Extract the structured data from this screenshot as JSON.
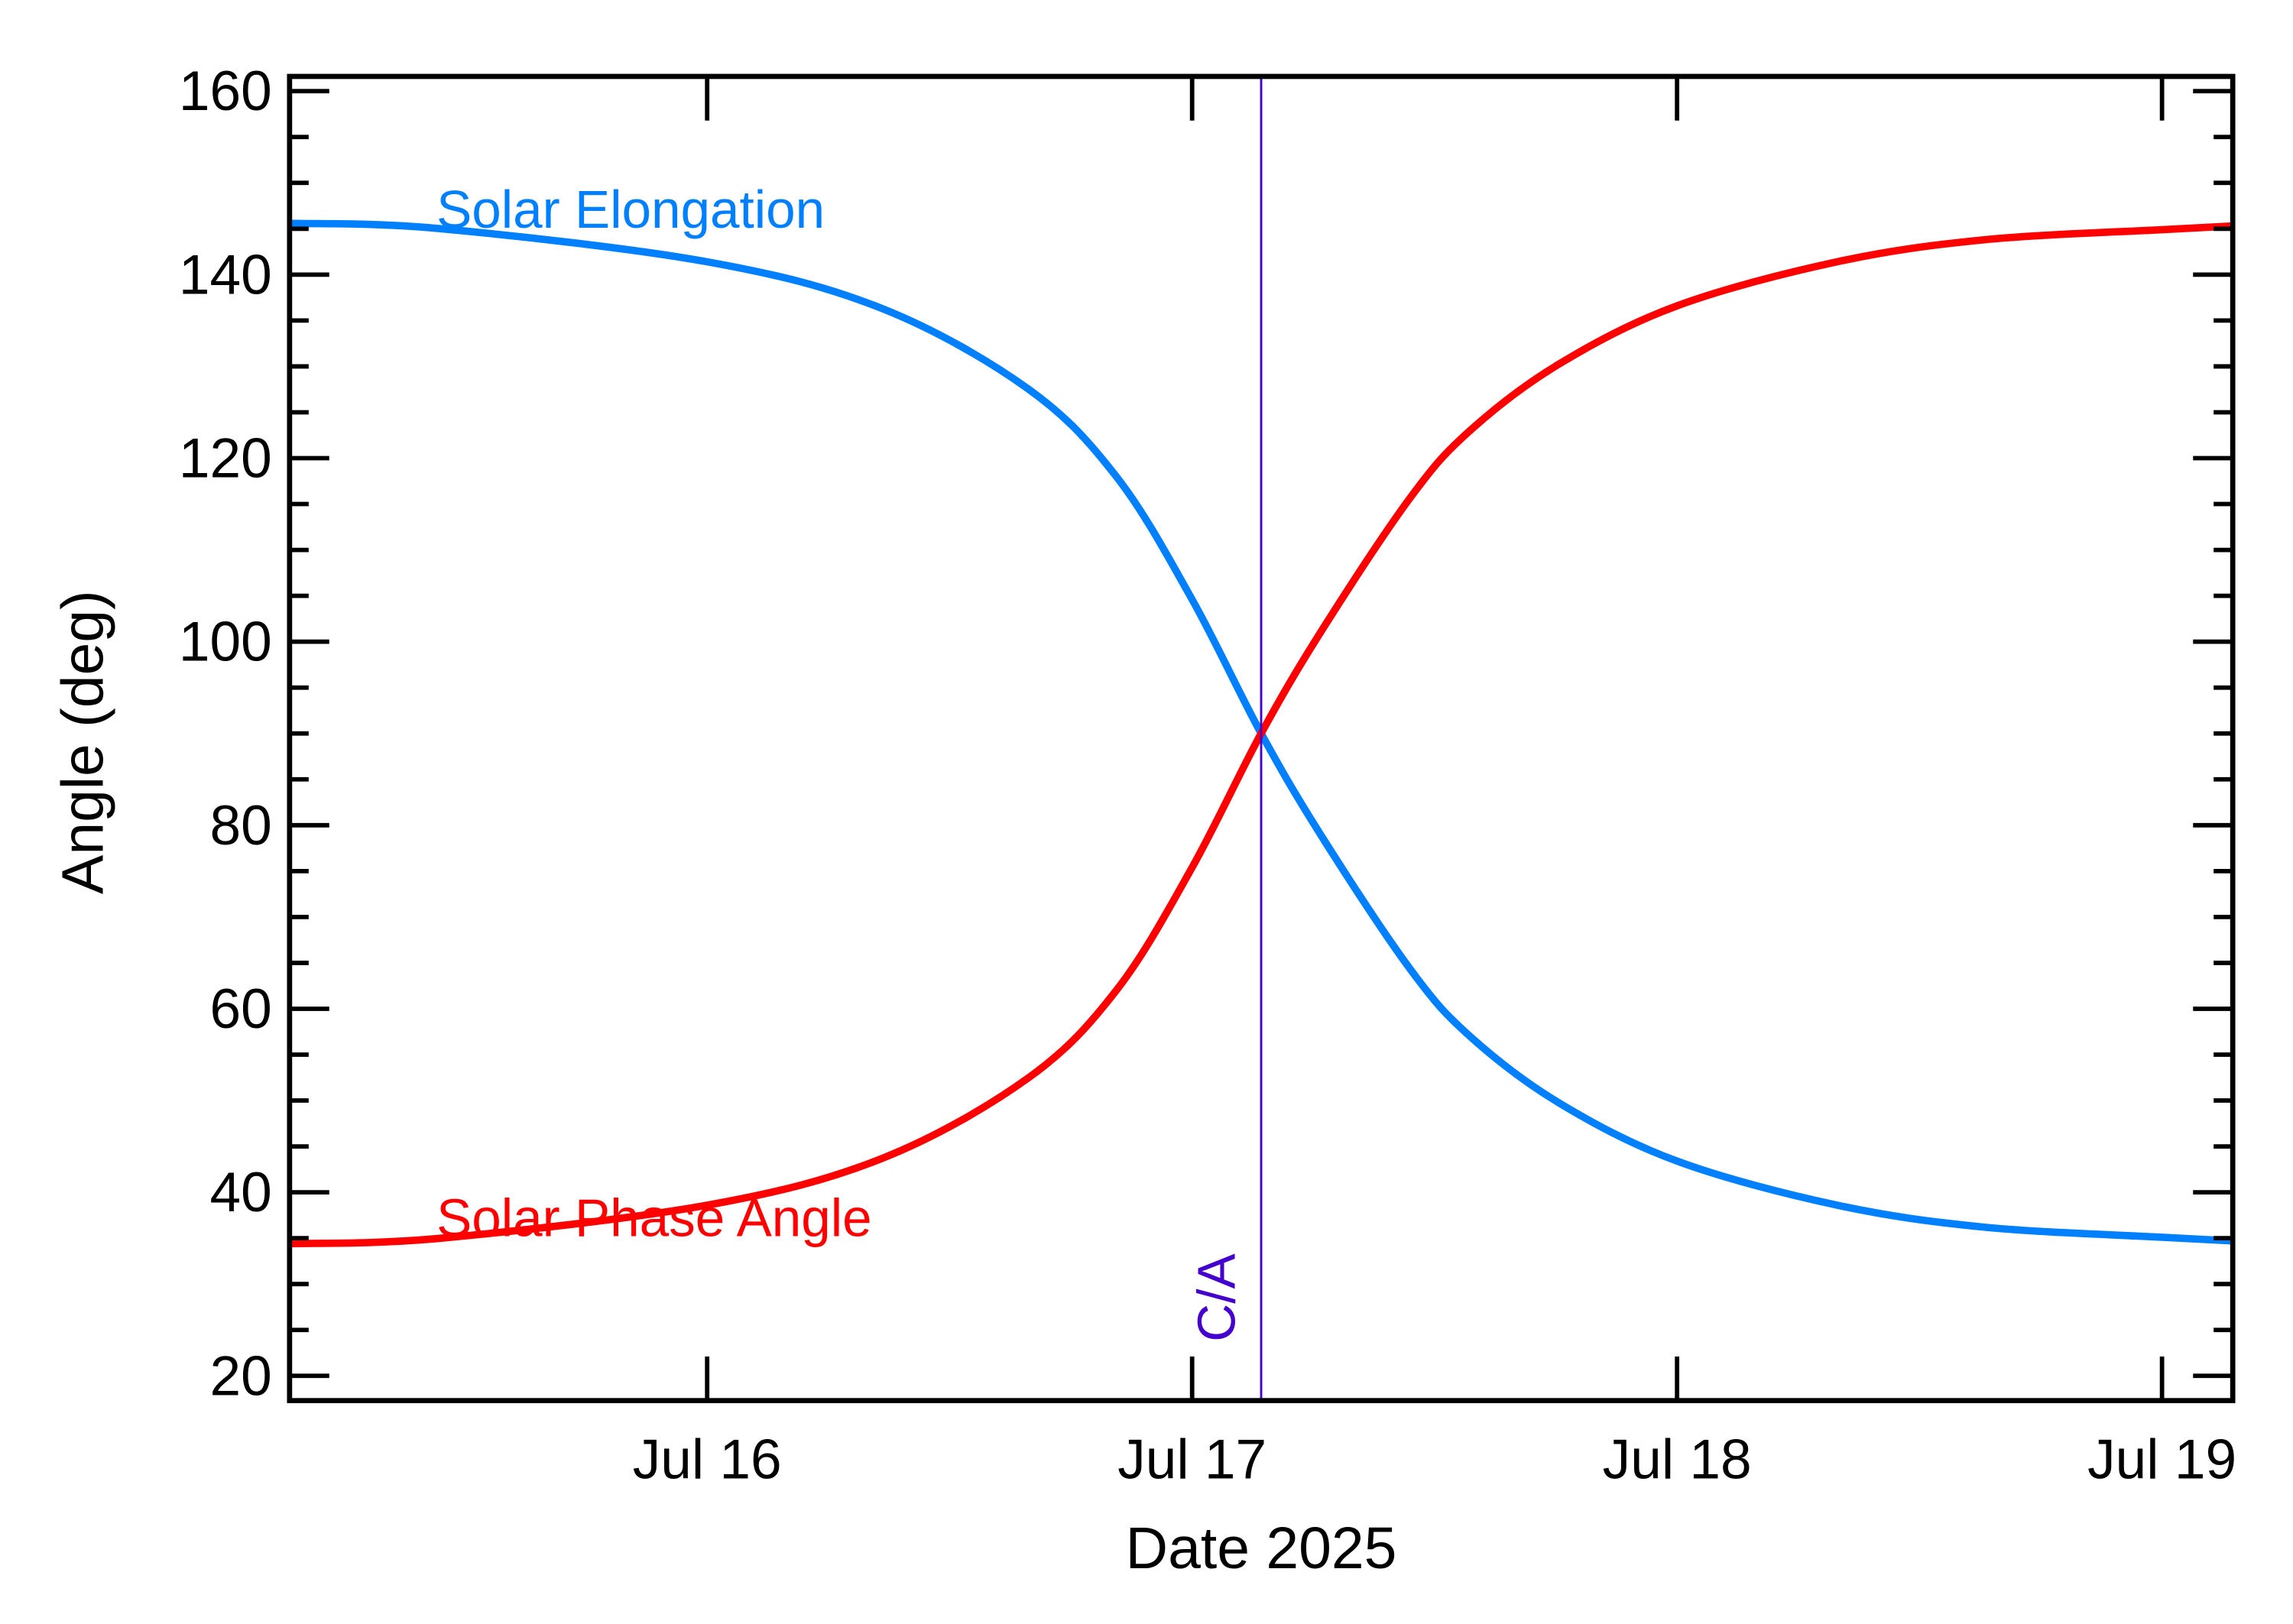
{
  "chart_data": {
    "type": "line",
    "title": "",
    "xlabel": "Date 2025",
    "ylabel": "Angle (deg)",
    "xlim": [
      "2025-07-15T03:20",
      "2025-07-19T03:30"
    ],
    "ylim": [
      17.3,
      161.6
    ],
    "x_ticks": [
      {
        "date": "2025-07-16T00:00",
        "label": "Jul 16"
      },
      {
        "date": "2025-07-17T00:00",
        "label": "Jul 17"
      },
      {
        "date": "2025-07-18T00:00",
        "label": "Jul 18"
      },
      {
        "date": "2025-07-19T00:00",
        "label": "Jul 19"
      }
    ],
    "y_ticks": [
      "20",
      "40",
      "60",
      "80",
      "100",
      "120",
      "140",
      "160"
    ],
    "y_minor_step": 5,
    "grid": false,
    "closest_approach": {
      "date": "2025-07-17T03:25",
      "label": "C/A",
      "color": "#4400cc"
    },
    "series": [
      {
        "name": "Solar Elongation",
        "color": "#0080ff",
        "x": [
          "2025-07-15T03:20",
          "2025-07-15T10:50",
          "2025-07-16T00:00",
          "2025-07-16T08:40",
          "2025-07-16T15:55",
          "2025-07-16T20:17",
          "2025-07-17T00:00",
          "2025-07-17T03:25",
          "2025-07-17T06:28",
          "2025-07-17T10:50",
          "2025-07-17T13:45",
          "2025-07-17T18:07",
          "2025-07-18T00:00",
          "2025-07-18T07:55",
          "2025-07-18T15:12",
          "2025-07-19T00:00",
          "2025-07-19T03:29"
        ],
        "values": [
          145.6,
          145.0,
          141.4,
          136.3,
          127.5,
          117.9,
          104.6,
          90.0,
          78.6,
          64.2,
          57.0,
          49.8,
          43.4,
          38.6,
          36.2,
          35.1,
          34.7
        ]
      },
      {
        "name": "Solar Phase Angle",
        "color": "#ff0000",
        "x": [
          "2025-07-15T03:20",
          "2025-07-15T10:50",
          "2025-07-16T00:00",
          "2025-07-16T08:40",
          "2025-07-16T15:55",
          "2025-07-16T20:17",
          "2025-07-17T00:00",
          "2025-07-17T03:25",
          "2025-07-17T06:28",
          "2025-07-17T10:50",
          "2025-07-17T13:45",
          "2025-07-17T18:07",
          "2025-07-18T00:00",
          "2025-07-18T07:55",
          "2025-07-18T15:12",
          "2025-07-19T00:00",
          "2025-07-19T03:29"
        ],
        "values": [
          34.4,
          35.0,
          38.6,
          43.7,
          52.5,
          62.1,
          75.4,
          90.0,
          101.4,
          115.8,
          123.0,
          130.2,
          136.6,
          141.4,
          143.8,
          144.9,
          145.3
        ]
      }
    ]
  }
}
